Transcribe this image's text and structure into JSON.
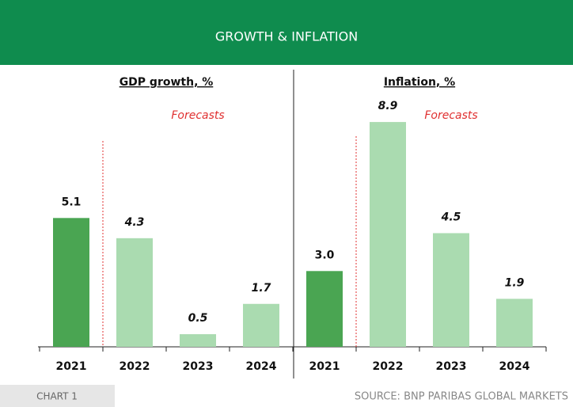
{
  "header": {
    "title": "GROWTH & INFLATION"
  },
  "footer": {
    "label": "CHART 1",
    "source": "SOURCE: BNP PARIBAS GLOBAL MARKETS"
  },
  "chart_data": [
    {
      "type": "bar",
      "title": "GDP growth, %",
      "annotation": "Forecasts",
      "categories": [
        "2021",
        "2022",
        "2023",
        "2024"
      ],
      "values": [
        5.1,
        4.3,
        0.5,
        1.7
      ],
      "colors": [
        "#4aa552",
        "#aadbb0",
        "#aadbb0",
        "#aadbb0"
      ]
    },
    {
      "type": "bar",
      "title": "Inflation, %",
      "annotation": "Forecasts",
      "categories": [
        "2021",
        "2022",
        "2023",
        "2024"
      ],
      "values": [
        3,
        8.9,
        4.5,
        1.9
      ],
      "value_labels": [
        "3.0",
        "8.9",
        "4.5",
        "1.9"
      ],
      "colors": [
        "#4aa552",
        "#aadbb0",
        "#aadbb0",
        "#aadbb0"
      ]
    }
  ]
}
